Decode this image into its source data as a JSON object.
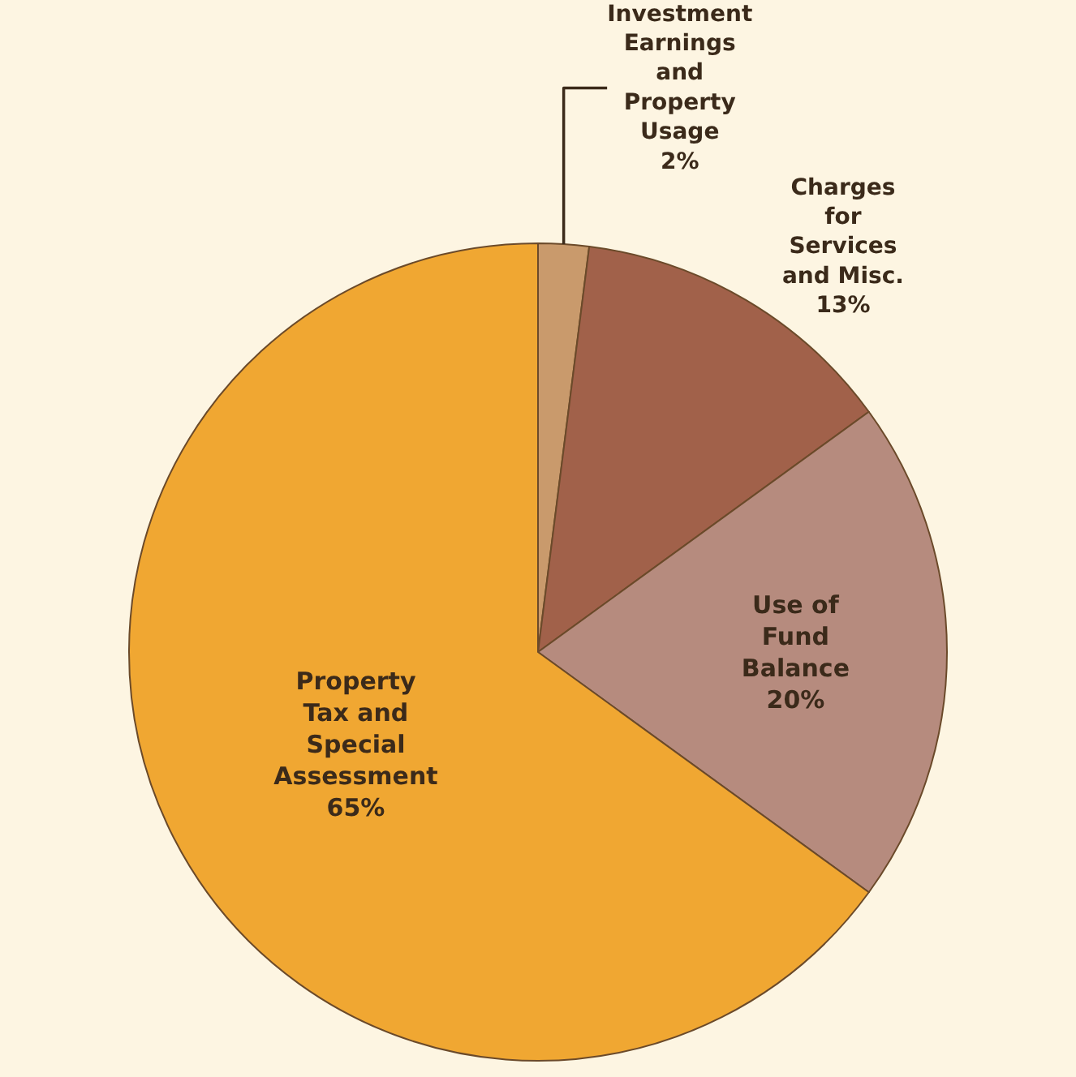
{
  "chart_data": {
    "type": "pie",
    "categories": [
      "Investment Earnings and Property Usage",
      "Charges for Services and Misc.",
      "Use of Fund Balance",
      "Property Tax and Special Assessment"
    ],
    "values": [
      2,
      13,
      20,
      65
    ],
    "value_labels": [
      "2%",
      "13%",
      "20%",
      "65%"
    ],
    "colors": [
      "#c99a6c",
      "#a1614a",
      "#b68b7e",
      "#f0a732"
    ],
    "legend": false
  }
}
